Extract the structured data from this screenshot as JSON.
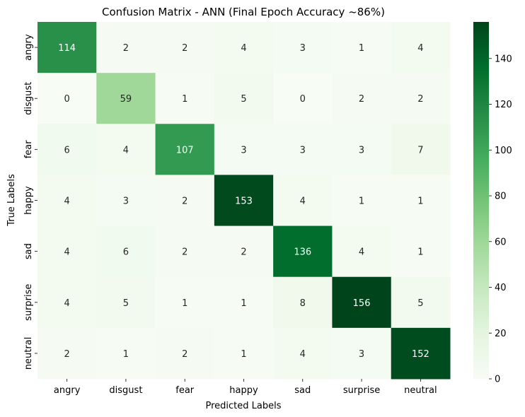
{
  "chart_data": {
    "type": "heatmap",
    "title": "Confusion Matrix - ANN (Final Epoch Accuracy ~86%)",
    "xlabel": "Predicted Labels",
    "ylabel": "True Labels",
    "x_categories": [
      "angry",
      "disgust",
      "fear",
      "happy",
      "sad",
      "surprise",
      "neutral"
    ],
    "y_categories": [
      "angry",
      "disgust",
      "fear",
      "happy",
      "sad",
      "surprise",
      "neutral"
    ],
    "values": [
      [
        114,
        2,
        2,
        4,
        3,
        1,
        4
      ],
      [
        0,
        59,
        1,
        5,
        0,
        2,
        2
      ],
      [
        6,
        4,
        107,
        3,
        3,
        3,
        7
      ],
      [
        4,
        3,
        2,
        153,
        4,
        1,
        1
      ],
      [
        4,
        6,
        2,
        2,
        136,
        4,
        1
      ],
      [
        4,
        5,
        1,
        1,
        8,
        156,
        5
      ],
      [
        2,
        1,
        2,
        1,
        4,
        3,
        152
      ]
    ],
    "colorbar": {
      "range": [
        0,
        156
      ],
      "ticks": [
        0,
        20,
        40,
        60,
        80,
        100,
        120,
        140
      ],
      "colormap": "Greens"
    }
  }
}
